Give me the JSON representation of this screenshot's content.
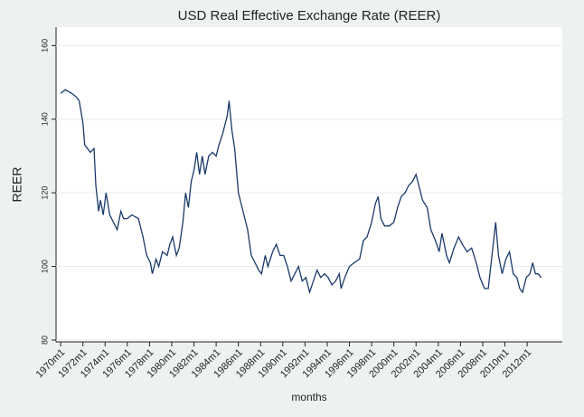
{
  "chart_data": {
    "type": "line",
    "title": "USD Real Effective Exchange Rate (REER)",
    "x_label": "months",
    "y_label": "REER",
    "x": [
      "1970m1",
      "1970m6",
      "1971m1",
      "1971m6",
      "1971m9",
      "1972m1",
      "1972m3",
      "1972m9",
      "1973m1",
      "1973m3",
      "1973m6",
      "1973m8",
      "1973m11",
      "1974m2",
      "1974m6",
      "1974m10",
      "1975m2",
      "1975m6",
      "1975m9",
      "1976m1",
      "1976m6",
      "1977m1",
      "1977m6",
      "1977m10",
      "1978m2",
      "1978m4",
      "1978m8",
      "1978m11",
      "1979m3",
      "1979m8",
      "1979m11",
      "1980m2",
      "1980m6",
      "1980m9",
      "1981m1",
      "1981m4",
      "1981m7",
      "1981m10",
      "1982m1",
      "1982m4",
      "1982m7",
      "1982m10",
      "1983m1",
      "1983m5",
      "1983m9",
      "1984m1",
      "1984m4",
      "1984m8",
      "1985m1",
      "1985m3",
      "1985m6",
      "1985m9",
      "1986m1",
      "1986m6",
      "1986m11",
      "1987m3",
      "1987m7",
      "1987m11",
      "1988m2",
      "1988m6",
      "1988m9",
      "1989m2",
      "1989m6",
      "1989m10",
      "1990m2",
      "1990m6",
      "1990m10",
      "1991m2",
      "1991m6",
      "1991m10",
      "1992m2",
      "1992m6",
      "1992m10",
      "1993m2",
      "1993m6",
      "1993m10",
      "1994m2",
      "1994m6",
      "1994m10",
      "1995m2",
      "1995m4",
      "1995m8",
      "1996m1",
      "1996m6",
      "1996m12",
      "1997m4",
      "1997m8",
      "1998m1",
      "1998m5",
      "1998m8",
      "1998m11",
      "1999m3",
      "1999m8",
      "2000m1",
      "2000m5",
      "2000m9",
      "2001m1",
      "2001m5",
      "2001m9",
      "2002m1",
      "2002m4",
      "2002m8",
      "2003m1",
      "2003m5",
      "2003m10",
      "2004m2",
      "2004m5",
      "2004m10",
      "2005m1",
      "2005m6",
      "2005m11",
      "2006m3",
      "2006m8",
      "2007m1",
      "2007m6",
      "2007m10",
      "2008m3",
      "2008m7",
      "2008m11",
      "2009m3",
      "2009m6",
      "2009m10",
      "2010m2",
      "2010m6",
      "2010m10",
      "2011m2",
      "2011m5",
      "2011m8",
      "2011m12",
      "2012m4",
      "2012m7",
      "2012m10",
      "2013m1",
      "2013m4"
    ],
    "series": [
      {
        "name": "REER",
        "color": "#1a3a6b",
        "values": [
          147,
          148,
          147,
          146,
          145,
          139,
          133,
          131,
          132,
          122,
          115,
          118,
          114,
          120,
          114,
          112,
          110,
          115,
          113,
          113,
          114,
          113,
          108,
          103,
          101,
          98,
          102,
          100,
          104,
          103,
          106,
          108,
          103,
          105,
          112,
          120,
          116,
          123,
          126,
          131,
          125,
          130,
          125,
          130,
          131,
          130,
          133,
          136,
          141,
          145,
          137,
          132,
          120,
          115,
          110,
          103,
          101,
          99,
          98,
          103,
          100,
          104,
          106,
          103,
          103,
          100,
          96,
          98,
          100,
          96,
          97,
          93,
          96,
          99,
          97,
          98,
          97,
          95,
          96,
          98,
          94,
          97,
          100,
          101,
          102,
          107,
          108,
          112,
          117,
          119,
          113,
          111,
          111,
          112,
          116,
          119,
          120,
          122,
          123,
          125,
          122,
          118,
          116,
          110,
          107,
          104,
          109,
          103,
          101,
          105,
          108,
          106,
          104,
          105,
          101,
          97,
          94,
          94,
          103,
          112,
          103,
          98,
          102,
          104,
          98,
          97,
          94,
          93,
          97,
          98,
          101,
          98,
          98,
          97
        ]
      }
    ],
    "xlim": [
      "1969m8",
      "2015m3"
    ],
    "xticks": [
      "1970m1",
      "1972m1",
      "1974m1",
      "1976m1",
      "1978m1",
      "1980m1",
      "1982m1",
      "1984m1",
      "1986m1",
      "1988m1",
      "1990m1",
      "1992m1",
      "1994m1",
      "1996m1",
      "1998m1",
      "2000m1",
      "2002m1",
      "2004m1",
      "2006m1",
      "2008m1",
      "2010m1",
      "2012m1"
    ],
    "ylim": [
      79.5,
      165
    ],
    "yticks": [
      80,
      100,
      120,
      140,
      160
    ],
    "grid": true
  }
}
